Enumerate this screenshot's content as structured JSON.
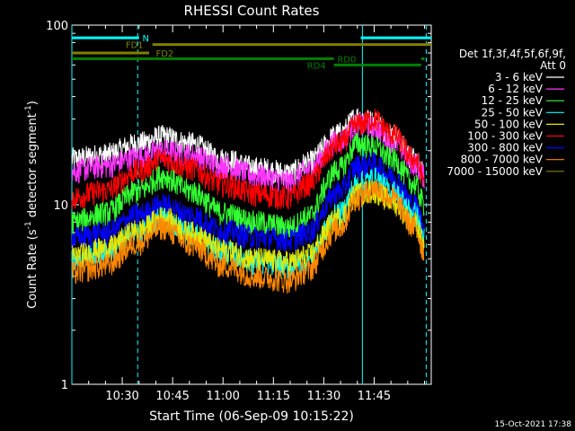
{
  "chart_data": {
    "type": "line",
    "title": "RHESSI Count Rates",
    "xlabel": "Start Time (06-Sep-09 10:15:22)",
    "ylabel": "Count Rate (s",
    "ylabel_sup": "-1",
    "ylabel_tail": " detector segment",
    "ylabel_sup2": "-1",
    "ylabel_end": ")",
    "y_scale": "log",
    "ylim": [
      1,
      100
    ],
    "yticks": [
      "1",
      "10",
      "100"
    ],
    "xlim_minutes": [
      0,
      107
    ],
    "xticks": [
      "10:30",
      "10:45",
      "11:00",
      "11:15",
      "11:30",
      "11:45"
    ],
    "xtick_minutes": [
      15,
      30,
      45,
      60,
      75,
      90
    ],
    "grid": false,
    "legend_title": "Det 1f,3f,4f,5f,6f,9f,",
    "legend_att": "Att 0",
    "series": [
      {
        "name": "3 - 6 keV",
        "color": "#ffffff",
        "x": [
          0,
          10,
          20,
          27,
          35,
          45,
          55,
          65,
          70,
          80,
          85,
          90,
          95,
          102,
          105
        ],
        "values": [
          18,
          19,
          22,
          24,
          22,
          18,
          16,
          15,
          17,
          25,
          31,
          29,
          25,
          18,
          15
        ]
      },
      {
        "name": "6 - 12 keV",
        "color": "#ff33ff",
        "x": [
          0,
          10,
          20,
          27,
          35,
          45,
          55,
          65,
          70,
          80,
          85,
          90,
          95,
          102,
          105
        ],
        "values": [
          15.5,
          16.5,
          18.5,
          20,
          19,
          16.5,
          14.5,
          13.5,
          15.5,
          23,
          28,
          27,
          23,
          17,
          14.5
        ]
      },
      {
        "name": "12 - 25 keV",
        "color": "#33ff33",
        "x": [
          0,
          10,
          20,
          27,
          35,
          45,
          55,
          65,
          70,
          80,
          85,
          90,
          95,
          102,
          105
        ],
        "values": [
          8,
          9,
          12,
          14.5,
          12,
          9,
          8,
          7.5,
          8.5,
          16,
          22,
          21,
          18,
          13,
          10
        ]
      },
      {
        "name": "25 - 50 keV",
        "color": "#00ffff",
        "x": [
          0,
          10,
          20,
          27,
          35,
          45,
          55,
          65,
          70,
          80,
          85,
          90,
          95,
          102,
          105
        ],
        "values": [
          5,
          5.5,
          7,
          8.5,
          7,
          5.5,
          4.8,
          4.5,
          5,
          9,
          13,
          14,
          12,
          9,
          6.5
        ]
      },
      {
        "name": "50 - 100 keV",
        "color": "#e6e600",
        "x": [
          0,
          10,
          20,
          27,
          35,
          45,
          55,
          65,
          70,
          80,
          85,
          90,
          95,
          102,
          105
        ],
        "values": [
          5.2,
          5.7,
          7.2,
          8.5,
          7,
          5.6,
          5,
          4.8,
          5.2,
          8.5,
          11.5,
          12,
          10.5,
          8,
          6
        ]
      },
      {
        "name": "100 - 300 keV",
        "color": "#ff0000",
        "x": [
          0,
          10,
          20,
          27,
          35,
          45,
          55,
          65,
          70,
          80,
          85,
          90,
          95,
          102,
          105
        ],
        "values": [
          11,
          12,
          15.5,
          18,
          16,
          13,
          11.5,
          11,
          13,
          22,
          28,
          30,
          25,
          18,
          14
        ]
      },
      {
        "name": "300 - 800 keV",
        "color": "#0000ff",
        "x": [
          0,
          10,
          20,
          27,
          35,
          45,
          55,
          65,
          70,
          80,
          85,
          90,
          95,
          102,
          105
        ],
        "values": [
          6.5,
          7,
          8.8,
          10,
          8.8,
          7.2,
          6.6,
          6.4,
          7,
          12,
          16.5,
          17,
          14.5,
          10,
          7.5
        ]
      },
      {
        "name": "800 - 7000 keV",
        "color": "#ff8800",
        "x": [
          0,
          10,
          20,
          27,
          35,
          45,
          55,
          65,
          70,
          80,
          85,
          90,
          95,
          102,
          105
        ],
        "values": [
          4.2,
          4.6,
          6.2,
          7.5,
          6,
          4.6,
          4,
          3.8,
          4.3,
          7.5,
          11,
          12.5,
          11,
          7.5,
          5.5
        ]
      },
      {
        "name": "7000 - 15000 keV",
        "color": "#808000",
        "x": [],
        "values": []
      }
    ],
    "attenuator_bars": [
      {
        "label": "N",
        "color": "#00ffff",
        "segments": [
          [
            0,
            20
          ],
          [
            86,
            107
          ]
        ],
        "value": 85,
        "label_at": 21
      },
      {
        "label": "FD1",
        "color": "#808000",
        "segments": [
          [
            24,
            107
          ]
        ],
        "value": 78,
        "label_at": 16
      },
      {
        "label": "FD2",
        "color": "#808000",
        "segments": [
          [
            0,
            23
          ]
        ],
        "value": 70,
        "label_at": 25
      },
      {
        "label": "RD0",
        "color": "#008000",
        "segments": [
          [
            0,
            78
          ],
          [
            104,
            105
          ]
        ],
        "value": 65,
        "label_at": 79
      },
      {
        "label": "RD4",
        "color": "#008000",
        "segments": [
          [
            78,
            104
          ]
        ],
        "value": 60,
        "label_at": 70
      }
    ],
    "vertical_lines": [
      {
        "minute": 0,
        "style": "solid"
      },
      {
        "minute": 19.6,
        "style": "dashed"
      },
      {
        "minute": 86.5,
        "style": "solid"
      },
      {
        "minute": 105.5,
        "style": "dashed"
      }
    ]
  },
  "footer": {
    "timestamp": "15-Oct-2021 17:38"
  }
}
